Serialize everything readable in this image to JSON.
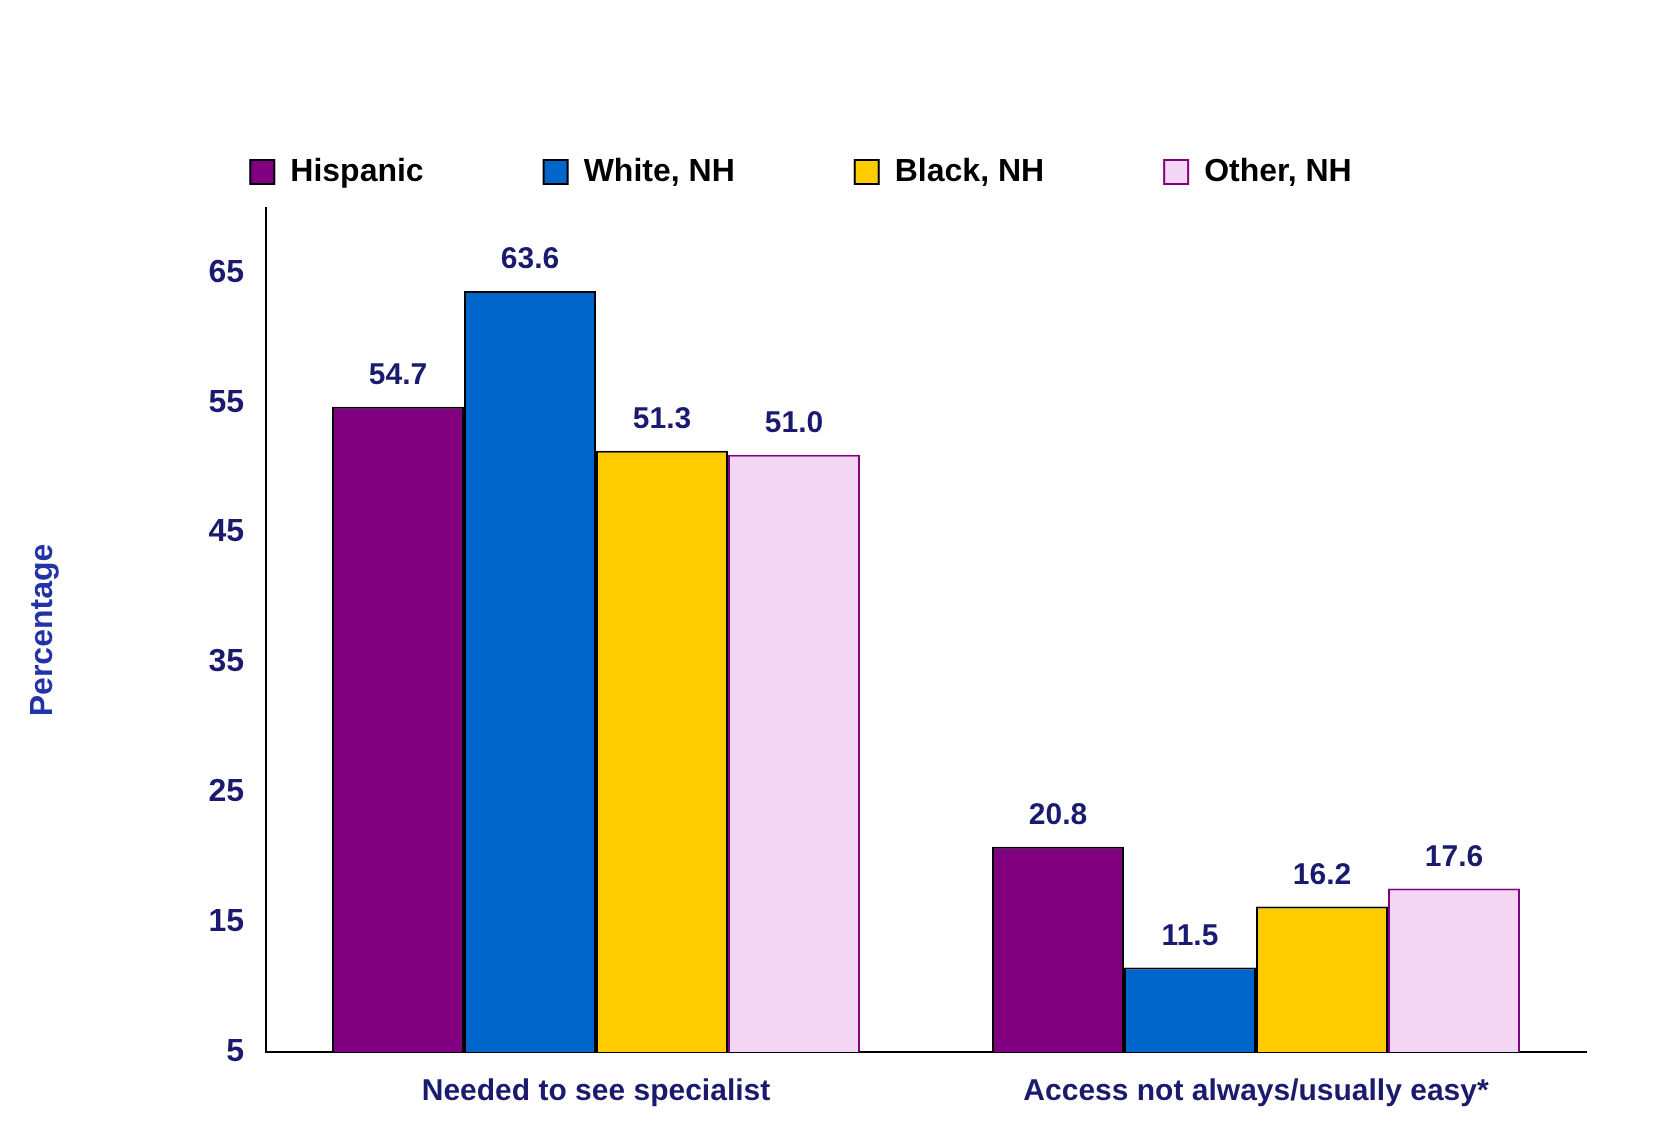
{
  "chart_data": {
    "type": "bar",
    "ylabel": "Percentage",
    "categories": [
      "Needed to see specialist",
      "Access not always/usually easy*"
    ],
    "series": [
      {
        "name": "Hispanic",
        "color": "#800080",
        "values": [
          54.7,
          20.8
        ]
      },
      {
        "name": "White, NH",
        "color": "#0066cc",
        "values": [
          63.6,
          11.5
        ]
      },
      {
        "name": "Black, NH",
        "color": "#ffcc00",
        "values": [
          51.3,
          16.2
        ]
      },
      {
        "name": "Other, NH",
        "color": "#f3d6f3",
        "values": [
          51.0,
          17.6
        ],
        "value_labels": [
          "51.0",
          "17.6"
        ]
      }
    ],
    "ylim": [
      5,
      70
    ],
    "yticks": [
      5,
      15,
      25,
      35,
      45,
      55,
      65
    ],
    "grid": false,
    "legend": "top",
    "data_labels": true
  }
}
